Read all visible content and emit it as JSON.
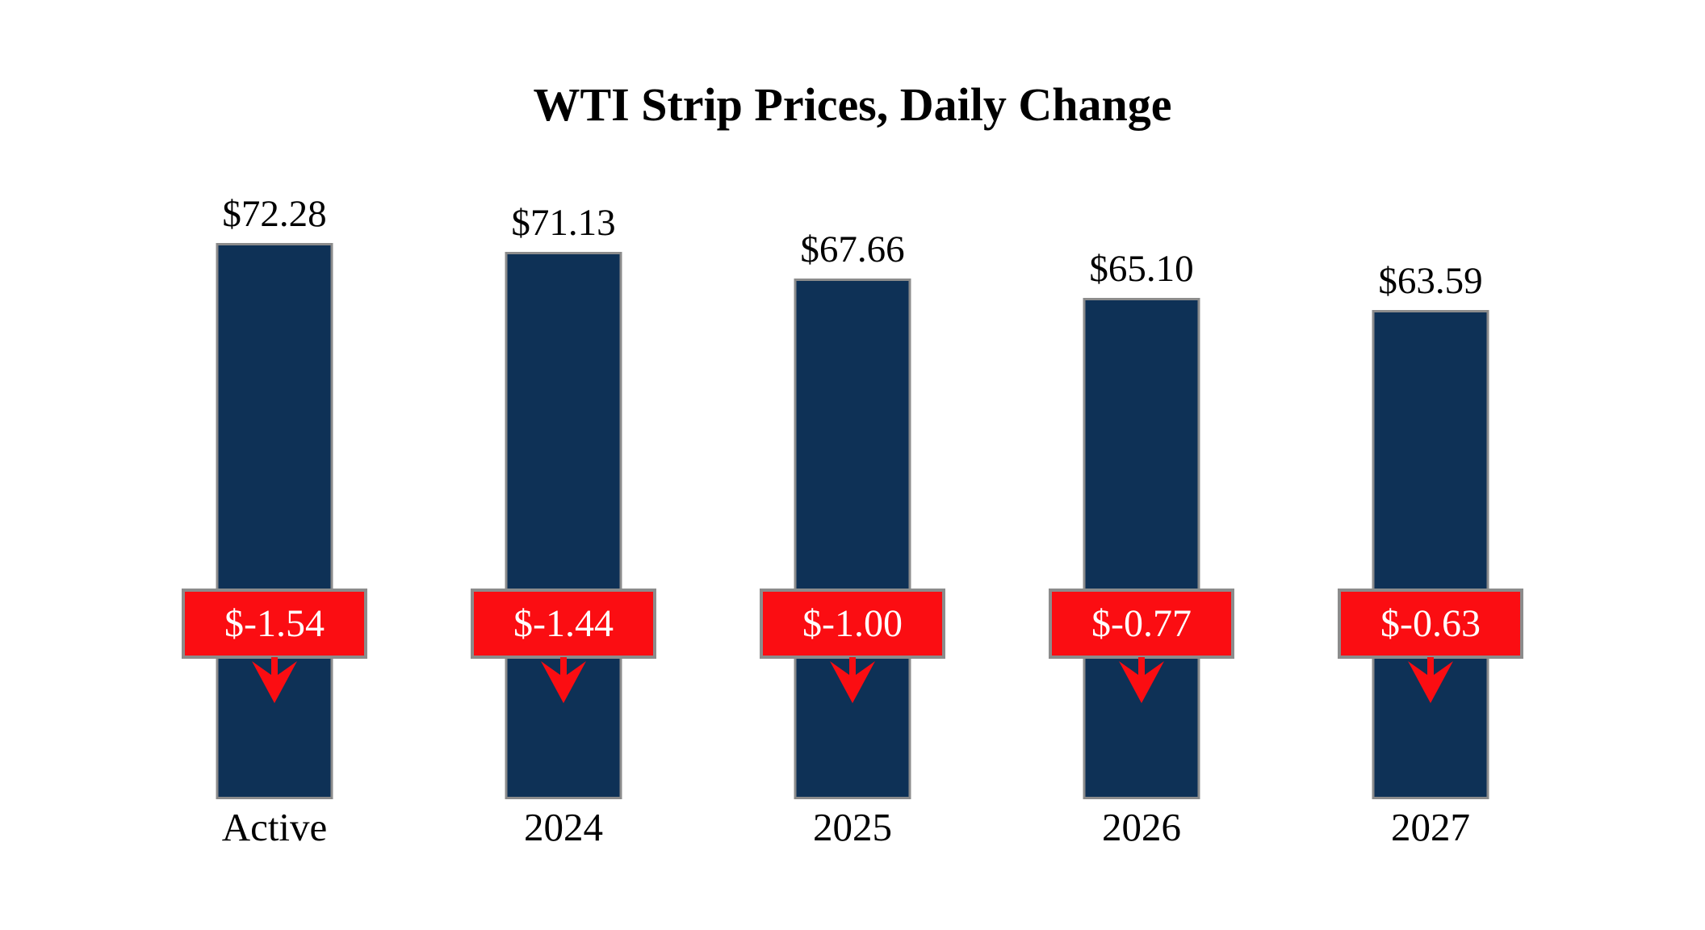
{
  "page": {
    "background": "#ffffff"
  },
  "chart_data": {
    "type": "bar",
    "title": "WTI Strip Prices, Daily Change",
    "categories": [
      "Active",
      "2024",
      "2025",
      "2026",
      "2027"
    ],
    "series": [
      {
        "name": "strip-price",
        "values": [
          72.28,
          71.13,
          67.66,
          65.1,
          63.59
        ],
        "labels": [
          "$72.28",
          "$71.13",
          "$67.66",
          "$65.10",
          "$63.59"
        ]
      },
      {
        "name": "daily-change",
        "values": [
          -1.54,
          -1.44,
          -1.0,
          -0.77,
          -0.63
        ],
        "labels": [
          "$-1.54",
          "$-1.44",
          "$-1.00",
          "$-0.77",
          "$-0.63"
        ]
      }
    ],
    "ylim": [
      0,
      72.28
    ],
    "xlabel": "",
    "ylabel": "",
    "grid": false,
    "legend": "none",
    "axes": "hidden",
    "annotation_style": "red change boxes with downward arrows overlaid on each bar"
  },
  "colors": {
    "bar_fill": "#0e3156",
    "bar_border": "#8c8c8c",
    "change_box_fill": "#fb0d12",
    "change_box_border": "#8c8c8c",
    "change_box_text": "#ffffff",
    "arrow": "#fb0d12",
    "label_text": "#000000"
  }
}
